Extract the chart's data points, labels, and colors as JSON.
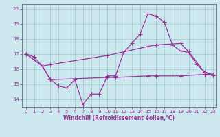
{
  "xlabel": "Windchill (Refroidissement éolien,°C)",
  "background_color": "#cce8ee",
  "line_color": "#993399",
  "grid_color": "#99cccc",
  "spine_color": "#666688",
  "xlim": [
    -0.5,
    23.3
  ],
  "ylim": [
    13.5,
    20.3
  ],
  "xticks": [
    0,
    1,
    2,
    3,
    4,
    5,
    6,
    7,
    8,
    9,
    10,
    11,
    12,
    13,
    14,
    15,
    16,
    17,
    18,
    19,
    20,
    21,
    22,
    23
  ],
  "yticks": [
    14,
    15,
    16,
    17,
    18,
    19,
    20
  ],
  "line1_x": [
    0,
    2,
    3,
    10,
    15,
    16,
    19,
    20,
    22,
    23
  ],
  "line1_y": [
    17.0,
    16.2,
    16.3,
    16.9,
    17.5,
    17.6,
    17.7,
    17.15,
    15.75,
    15.65
  ],
  "line2_x": [
    0,
    1,
    2,
    3,
    4,
    5,
    6,
    7,
    8,
    9,
    10,
    11,
    12,
    13,
    14,
    15,
    16,
    17,
    18,
    19,
    20,
    21,
    22,
    23
  ],
  "line2_y": [
    17.0,
    16.8,
    16.2,
    15.3,
    14.9,
    14.75,
    15.3,
    13.65,
    14.35,
    14.35,
    15.55,
    15.55,
    17.1,
    17.7,
    18.3,
    19.65,
    19.5,
    19.1,
    17.6,
    17.2,
    17.1,
    16.3,
    15.8,
    15.6
  ],
  "line3_x": [
    0,
    2,
    3,
    10,
    11,
    15,
    16,
    19,
    22,
    23
  ],
  "line3_y": [
    17.0,
    16.2,
    15.3,
    15.45,
    15.45,
    15.55,
    15.55,
    15.55,
    15.65,
    15.65
  ],
  "marker": "+",
  "markersize": 4,
  "linewidth": 0.9,
  "xlabel_fontsize": 5.5,
  "tick_fontsize": 5.0
}
